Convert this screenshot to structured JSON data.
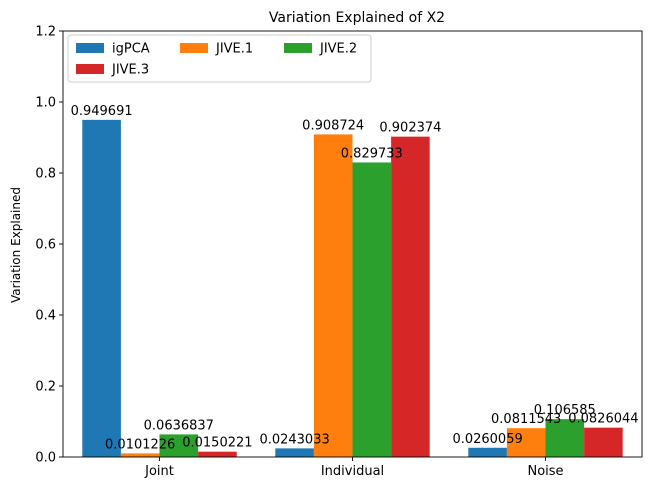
{
  "chart_data": {
    "type": "bar",
    "title": "Variation Explained of X2",
    "xlabel": "",
    "ylabel": "Variation Explained",
    "ylim": [
      0,
      1.2
    ],
    "yticks": [
      "0.0",
      "0.2",
      "0.4",
      "0.6",
      "0.8",
      "1.0",
      "1.2"
    ],
    "ytick_values": [
      0,
      0.2,
      0.4,
      0.6,
      0.8,
      1.0,
      1.2
    ],
    "categories": [
      "Joint",
      "Individual",
      "Noise"
    ],
    "series": [
      {
        "name": "igPCA",
        "color": "#1f77b4",
        "values": [
          0.949691,
          0.0243033,
          0.0260059
        ],
        "labels": [
          "0.949691",
          "0.0243033",
          "0.0260059"
        ]
      },
      {
        "name": "JIVE.1",
        "color": "#ff7f0e",
        "values": [
          0.0101226,
          0.908724,
          0.0811543
        ],
        "labels": [
          "0.0101226",
          "0.908724",
          "0.0811543"
        ]
      },
      {
        "name": "JIVE.2",
        "color": "#2ca02c",
        "values": [
          0.0636837,
          0.829733,
          0.106585
        ],
        "labels": [
          "0.0636837",
          "0.829733",
          "0.106585"
        ]
      },
      {
        "name": "JIVE.3",
        "color": "#d62728",
        "values": [
          0.0150221,
          0.902374,
          0.0826044
        ],
        "labels": [
          "0.0150221",
          "0.902374",
          "0.0826044"
        ]
      }
    ],
    "legend_position": "top-left",
    "legend_columns": 3,
    "grid": false
  }
}
